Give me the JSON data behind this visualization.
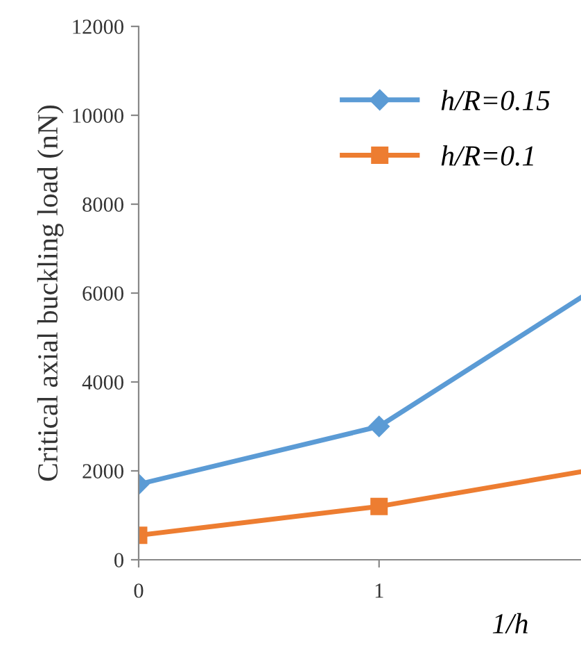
{
  "chart_data": {
    "type": "line",
    "xlabel": "1/h",
    "ylabel": "Critical axial buckling load (nN)",
    "series": [
      {
        "name": "h/R=0.15",
        "color": "#5b9bd5",
        "marker": "diamond",
        "x": [
          0,
          1,
          1.84
        ],
        "values": [
          1700,
          3000,
          5900
        ]
      },
      {
        "name": "h/R=0.1",
        "color": "#ed7d31",
        "marker": "square",
        "x": [
          0,
          1,
          1.84
        ],
        "values": [
          550,
          1200,
          1980
        ]
      }
    ],
    "xlim": [
      0,
      1.84
    ],
    "xticks": [
      0,
      1
    ],
    "ylim": [
      0,
      12000
    ],
    "yticks": [
      0,
      2000,
      4000,
      6000,
      8000,
      10000,
      12000
    ],
    "grid": false,
    "legend": "top right",
    "line_style": "solid"
  }
}
